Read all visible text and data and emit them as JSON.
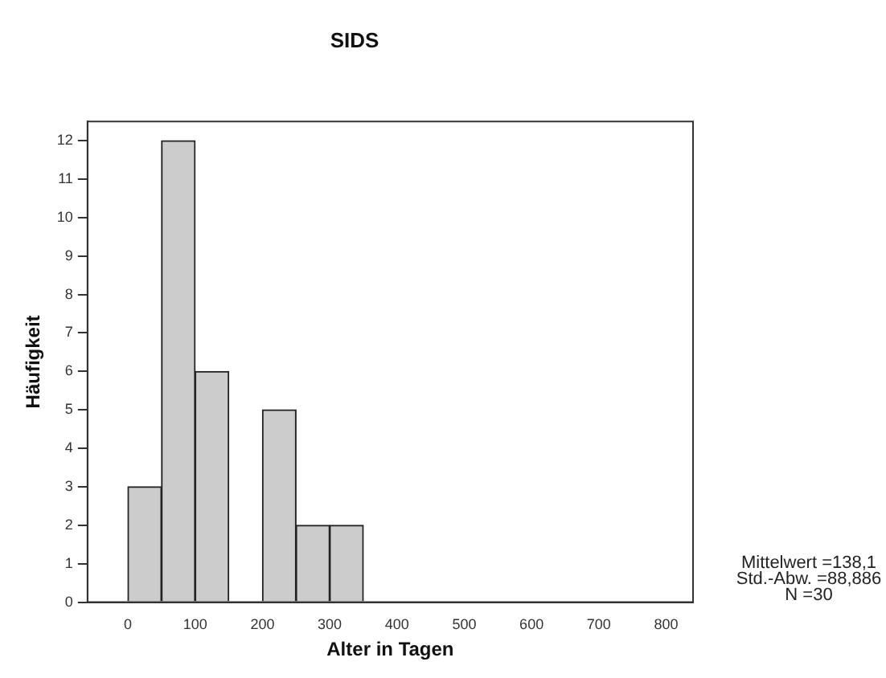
{
  "chart_data": {
    "type": "histogram",
    "title": "SIDS",
    "xlabel": "Alter in Tagen",
    "ylabel": "Häufigkeit",
    "bins": [
      0,
      50,
      100,
      150,
      200,
      250,
      300,
      350
    ],
    "values": [
      3,
      12,
      6,
      0,
      5,
      2,
      2
    ],
    "color": "#cccccc",
    "xlim": [
      -60,
      840
    ],
    "xticks": [
      0,
      100,
      200,
      300,
      400,
      500,
      600,
      700,
      800
    ],
    "ylim": [
      0,
      12.5
    ],
    "yticks": [
      0,
      1,
      2,
      3,
      4,
      5,
      6,
      7,
      8,
      9,
      10,
      11,
      12
    ],
    "annotations": [
      "Mittelwert =138,1",
      "Std.-Abw. =88,886",
      "N =30"
    ]
  }
}
